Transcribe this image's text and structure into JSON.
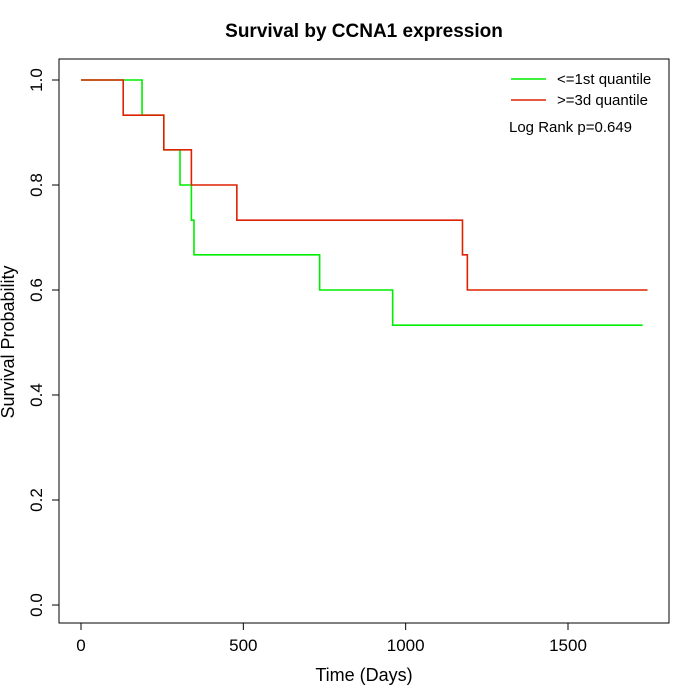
{
  "chart_data": {
    "type": "line",
    "title": "Survival by CCNA1 expression",
    "xlabel": "Time (Days)",
    "ylabel": "Survival Probability",
    "xlim": [
      0,
      1800
    ],
    "ylim": [
      0,
      1
    ],
    "xticks": [
      0,
      500,
      1000,
      1500
    ],
    "yticks": [
      0.0,
      0.2,
      0.4,
      0.6,
      0.8,
      1.0
    ],
    "xtick_labels": [
      "0",
      "500",
      "1000",
      "1500"
    ],
    "ytick_labels": [
      "0.0",
      "0.2",
      "0.4",
      "0.6",
      "0.8",
      "1.0"
    ],
    "grid": false,
    "legend_position": "top-right",
    "series": [
      {
        "name": "<=1st quantile",
        "color": "#00ee00",
        "step": true,
        "x": [
          0,
          188,
          255,
          305,
          340,
          348,
          735,
          960,
          1730
        ],
        "y": [
          1.0,
          0.933,
          0.867,
          0.8,
          0.733,
          0.667,
          0.6,
          0.533,
          0.533
        ]
      },
      {
        "name": ">=3d quantile",
        "color": "#dd2200",
        "step": true,
        "x": [
          0,
          130,
          255,
          340,
          480,
          1175,
          1190,
          1745
        ],
        "y": [
          1.0,
          0.933,
          0.867,
          0.8,
          0.733,
          0.667,
          0.6,
          0.6
        ]
      }
    ],
    "annotations": [
      {
        "text": "Log Rank p=0.649"
      }
    ]
  }
}
